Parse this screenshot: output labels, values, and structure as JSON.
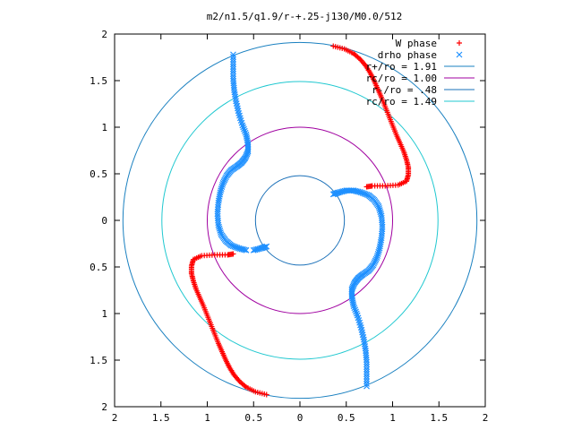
{
  "chart_data": {
    "type": "scatter",
    "title": "m2/n1.5/q1.9/r-+.25-j130/M0.0/512",
    "xlabel": "",
    "ylabel": "",
    "xlim": [
      -2,
      2
    ],
    "ylim": [
      -2,
      2
    ],
    "grid": false,
    "legend_position": "top-right",
    "x_ticks": [
      "2",
      "1.5",
      "1",
      "0.5",
      "0",
      "0.5",
      "1",
      "1.5",
      "2"
    ],
    "y_ticks": [
      "2",
      "1.5",
      "1",
      "0.5",
      "0",
      "0.5",
      "1",
      "1.5",
      "2"
    ],
    "series": [
      {
        "name": "W phase",
        "marker": "plus",
        "color": "#ff0000",
        "points": [
          [
            0.36,
            1.87
          ],
          [
            0.48,
            1.84
          ],
          [
            0.58,
            1.79
          ],
          [
            0.65,
            1.73
          ],
          [
            0.71,
            1.66
          ],
          [
            0.76,
            1.58
          ],
          [
            0.8,
            1.5
          ],
          [
            0.84,
            1.41
          ],
          [
            0.88,
            1.32
          ],
          [
            0.92,
            1.22
          ],
          [
            0.96,
            1.12
          ],
          [
            1.0,
            1.02
          ],
          [
            1.04,
            0.92
          ],
          [
            1.08,
            0.83
          ],
          [
            1.12,
            0.74
          ],
          [
            1.15,
            0.65
          ],
          [
            1.17,
            0.57
          ],
          [
            1.17,
            0.49
          ],
          [
            1.15,
            0.42
          ],
          [
            1.06,
            0.38
          ],
          [
            0.92,
            0.37
          ],
          [
            0.78,
            0.37
          ],
          [
            0.72,
            0.36
          ],
          [
            -0.36,
            -1.87
          ],
          [
            -0.48,
            -1.84
          ],
          [
            -0.58,
            -1.79
          ],
          [
            -0.65,
            -1.73
          ],
          [
            -0.71,
            -1.66
          ],
          [
            -0.76,
            -1.58
          ],
          [
            -0.8,
            -1.5
          ],
          [
            -0.84,
            -1.41
          ],
          [
            -0.88,
            -1.32
          ],
          [
            -0.92,
            -1.22
          ],
          [
            -0.96,
            -1.12
          ],
          [
            -1.0,
            -1.02
          ],
          [
            -1.04,
            -0.92
          ],
          [
            -1.08,
            -0.83
          ],
          [
            -1.12,
            -0.74
          ],
          [
            -1.15,
            -0.65
          ],
          [
            -1.17,
            -0.57
          ],
          [
            -1.17,
            -0.49
          ],
          [
            -1.15,
            -0.42
          ],
          [
            -1.06,
            -0.38
          ],
          [
            -0.92,
            -0.37
          ],
          [
            -0.78,
            -0.37
          ],
          [
            -0.72,
            -0.36
          ]
        ]
      },
      {
        "name": "drho phase",
        "marker": "cross",
        "color": "#1e90ff",
        "points": [
          [
            -0.72,
            1.78
          ],
          [
            -0.72,
            1.65
          ],
          [
            -0.72,
            1.52
          ],
          [
            -0.71,
            1.4
          ],
          [
            -0.69,
            1.28
          ],
          [
            -0.66,
            1.15
          ],
          [
            -0.62,
            1.02
          ],
          [
            -0.58,
            0.92
          ],
          [
            -0.56,
            0.82
          ],
          [
            -0.56,
            0.74
          ],
          [
            -0.59,
            0.67
          ],
          [
            -0.63,
            0.62
          ],
          [
            -0.68,
            0.58
          ],
          [
            -0.74,
            0.54
          ],
          [
            -0.79,
            0.48
          ],
          [
            -0.83,
            0.4
          ],
          [
            -0.86,
            0.3
          ],
          [
            -0.88,
            0.19
          ],
          [
            -0.89,
            0.07
          ],
          [
            -0.88,
            -0.05
          ],
          [
            -0.85,
            -0.15
          ],
          [
            -0.8,
            -0.22
          ],
          [
            -0.74,
            -0.27
          ],
          [
            -0.66,
            -0.3
          ],
          [
            -0.58,
            -0.32
          ],
          [
            0.72,
            -1.78
          ],
          [
            0.72,
            -1.65
          ],
          [
            0.72,
            -1.52
          ],
          [
            0.71,
            -1.4
          ],
          [
            0.69,
            -1.28
          ],
          [
            0.66,
            -1.15
          ],
          [
            0.62,
            -1.02
          ],
          [
            0.58,
            -0.92
          ],
          [
            0.56,
            -0.82
          ],
          [
            0.56,
            -0.74
          ],
          [
            0.59,
            -0.67
          ],
          [
            0.63,
            -0.62
          ],
          [
            0.68,
            -0.58
          ],
          [
            0.74,
            -0.54
          ],
          [
            0.79,
            -0.48
          ],
          [
            0.83,
            -0.4
          ],
          [
            0.86,
            -0.3
          ],
          [
            0.88,
            -0.19
          ],
          [
            0.89,
            -0.07
          ],
          [
            0.88,
            0.05
          ],
          [
            0.85,
            0.15
          ],
          [
            0.8,
            0.22
          ],
          [
            0.74,
            0.27
          ],
          [
            0.66,
            0.3
          ],
          [
            0.58,
            0.32
          ],
          [
            0.5,
            0.32
          ],
          [
            0.42,
            0.3
          ],
          [
            0.36,
            0.28
          ],
          [
            -0.36,
            -0.28
          ],
          [
            -0.42,
            -0.3
          ],
          [
            -0.5,
            -0.32
          ]
        ]
      },
      {
        "name": "r+/ro = 1.91",
        "type": "circle",
        "radius": 1.91,
        "color": "#1a80c0"
      },
      {
        "name": "rc/ro = 1.00",
        "type": "circle",
        "radius": 1.0,
        "color": "#a000a0"
      },
      {
        "name": "r-/ro = .48",
        "type": "circle",
        "radius": 0.48,
        "color": "#1a70b8"
      },
      {
        "name": "rc/ro = 1.49",
        "type": "circle",
        "radius": 1.49,
        "color": "#20c8d0"
      }
    ]
  }
}
